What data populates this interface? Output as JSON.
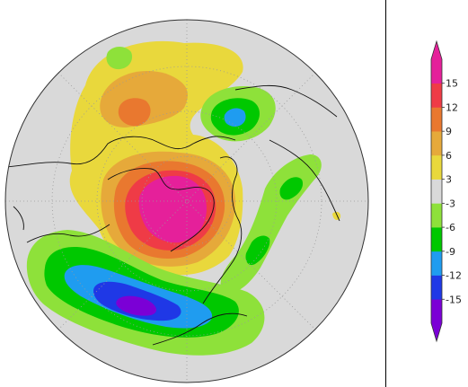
{
  "colorbar": {
    "colors": [
      "#7b00d6",
      "#1f38e6",
      "#1f9cf0",
      "#00c800",
      "#8ee13a",
      "#d9d9d9",
      "#e9d83c",
      "#e6a93a",
      "#e9782f",
      "#ef3b46",
      "#e5209a"
    ],
    "labels": [
      "-15",
      "-12",
      "-9",
      "-6",
      "-3",
      "3",
      "6",
      "9",
      "12",
      "15"
    ]
  },
  "map": {
    "background_color": "#d9d9d9",
    "coastline_color": "#111111",
    "grid_color": "#9a9a9a"
  }
}
